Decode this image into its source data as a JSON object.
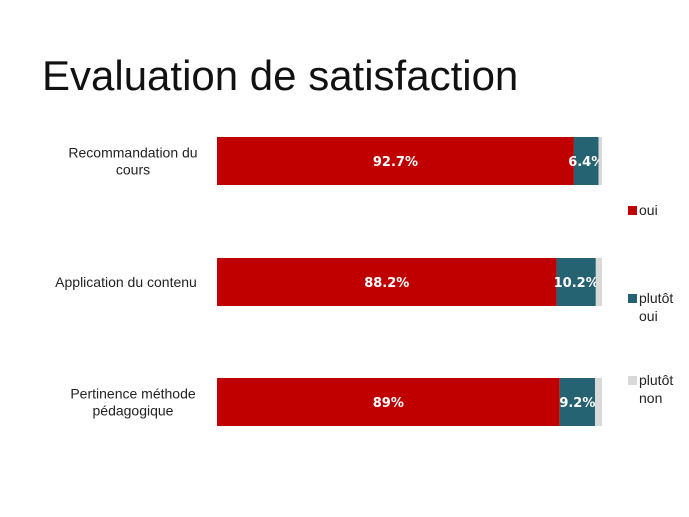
{
  "slide": {
    "title": "Evaluation de satisfaction"
  },
  "colors": {
    "oui": "#C00000",
    "plutot_oui": "#266372",
    "plutot_non": "#D9D9D9"
  },
  "chart_data": {
    "type": "bar",
    "orientation": "horizontal",
    "stacked": true,
    "percent": true,
    "categories": [
      [
        "Recommandation du",
        "cours"
      ],
      [
        "Application du contenu"
      ],
      [
        "Pertinence méthode",
        "pédagogique"
      ]
    ],
    "series": [
      {
        "name": "oui",
        "color": "#C00000",
        "values": [
          92.7,
          88.2,
          89
        ],
        "labels": [
          "92.7%",
          "88.2%",
          "89%"
        ]
      },
      {
        "name": "plutôt oui",
        "color": "#266372",
        "values": [
          6.4,
          10.2,
          9.2
        ],
        "labels": [
          "6.4%",
          "10.2%",
          "9.2%"
        ]
      },
      {
        "name": "plutôt non",
        "color": "#D9D9D9",
        "values": [
          0.9,
          1.6,
          1.8
        ],
        "labels": [
          "",
          "",
          ""
        ]
      }
    ],
    "legend": [
      [
        "oui"
      ],
      [
        "plutôt",
        "oui"
      ],
      [
        "plutôt",
        "non"
      ]
    ],
    "legend_position": "right",
    "grid": false,
    "xlim": [
      0,
      100
    ]
  }
}
